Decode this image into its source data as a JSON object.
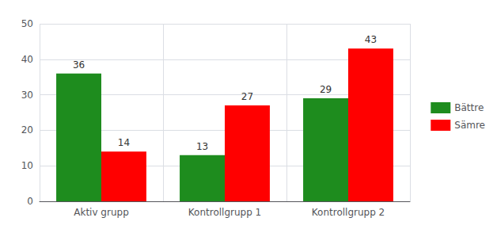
{
  "chart_data": {
    "type": "bar",
    "categories": [
      "Aktiv grupp",
      "Kontrollgrupp 1",
      "Kontrollgrupp 2"
    ],
    "series": [
      {
        "name": "Bättre",
        "color": "#1e8c1e",
        "values": [
          36,
          13,
          29
        ]
      },
      {
        "name": "Sämre",
        "color": "#ff0000",
        "values": [
          14,
          27,
          43
        ]
      }
    ],
    "ylim": [
      0,
      50
    ],
    "yticks": [
      0,
      10,
      20,
      30,
      40,
      50
    ],
    "grid": true,
    "legend": "right",
    "data_labels": true
  }
}
